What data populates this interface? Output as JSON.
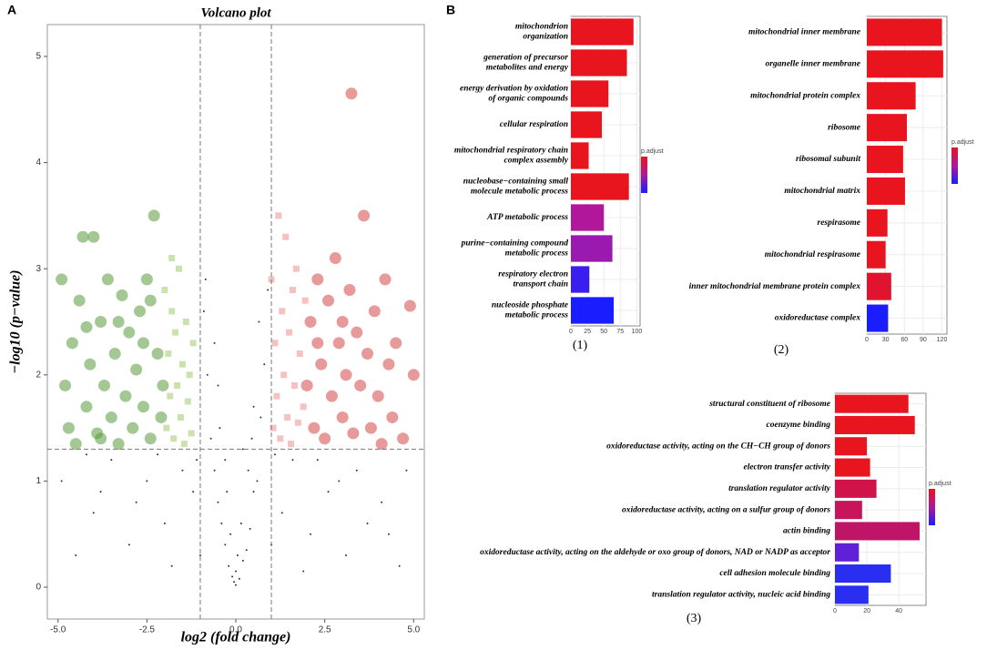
{
  "panel_b": "B",
  "chart_data": [
    {
      "type": "scatter",
      "panel": "A",
      "title": "Volcano plot",
      "x_label": "log2 (fold change)",
      "y_label": "−log10 (p−value)",
      "xlim": [
        -5.3,
        5.3
      ],
      "ylim": [
        -0.3,
        5.3
      ],
      "xticks": [
        {
          "value": -5,
          "label": "-5.0"
        },
        -2.5,
        {
          "value": 0,
          "label": "0.0"
        },
        2.5,
        {
          "value": 5,
          "label": "5.0"
        }
      ],
      "yticks": [
        0,
        1,
        2,
        3,
        4,
        5
      ],
      "vlines": [
        -1,
        1
      ],
      "hline": 1.3,
      "series": [
        {
          "color": "#000000",
          "marker": "point",
          "x": [
            0,
            -0.1,
            0.1,
            -0.2,
            0.2,
            -0.3,
            0.3,
            -0.4,
            0.4,
            -0.5,
            0.5,
            -0.6,
            0.6,
            -0.7,
            0.7,
            -0.8,
            0.8,
            -0.9,
            0.9,
            -0.5,
            0.5,
            -0.3,
            0.2,
            -1.2,
            1.3,
            -1.5,
            1.6,
            -2,
            2.1,
            -2.5,
            2.6,
            -3,
            3.1,
            -3.5,
            3.4,
            -4,
            4.1,
            -4.5,
            4.6,
            -4.9,
            4.8,
            -1,
            1,
            -1.8,
            1.9,
            -2.8,
            2.9,
            -3.8,
            3.7,
            -0.15,
            0.15,
            -0.25,
            0.35,
            -0.45,
            0.45,
            -0.6,
            0.65,
            -0.85,
            -1.1,
            1.1,
            -2.2,
            2.3,
            -4.2,
            4.3,
            0,
            -0.05,
            0.05
          ],
          "values": [
            0.02,
            0.1,
            0.08,
            0.2,
            0.25,
            0.4,
            0.35,
            0.6,
            0.55,
            0.8,
            0.9,
            1.1,
            1.0,
            1.4,
            1.6,
            2.0,
            2.1,
            2.6,
            2.8,
            1.9,
            1.7,
            1.2,
            1.3,
            0.9,
            0.7,
            1.1,
            1.2,
            0.6,
            0.5,
            1.0,
            0.9,
            0.4,
            0.3,
            1.2,
            1.1,
            0.7,
            0.8,
            0.3,
            0.2,
            1.0,
            1.1,
            0.3,
            0.4,
            0.2,
            0.15,
            0.8,
            1.0,
            0.9,
            0.6,
            0.5,
            0.6,
            0.9,
            1.1,
            1.5,
            1.4,
            2.3,
            2.5,
            2.9,
            1.2,
            1.25,
            1.25,
            1.2,
            1.25,
            0.5,
            0.15,
            0.05,
            0.3
          ]
        },
        {
          "color": "#5a9a3c",
          "marker": "circle",
          "x": [
            -4.9,
            -4.8,
            -4.7,
            -4.6,
            -4.5,
            -4.4,
            -4.3,
            -4.2,
            -4.1,
            -4,
            -3.9,
            -3.8,
            -3.7,
            -3.6,
            -3.5,
            -3.4,
            -3.3,
            -3.2,
            -3.1,
            -3,
            -2.9,
            -2.8,
            -2.7,
            -2.6,
            -2.5,
            -2.4,
            -2.3,
            -2.2,
            -2.1,
            -2.05,
            -2.6,
            -3.3,
            -4.2,
            -2.4,
            -3.8
          ],
          "values": [
            2.9,
            1.9,
            1.5,
            2.3,
            1.35,
            2.7,
            3.3,
            1.7,
            2.1,
            3.3,
            1.45,
            2.5,
            1.9,
            2.9,
            1.6,
            2.2,
            1.35,
            2.75,
            1.8,
            2.4,
            1.5,
            2.05,
            2.6,
            1.7,
            2.9,
            1.4,
            3.5,
            2.2,
            1.6,
            1.9,
            2.3,
            2.5,
            2.45,
            2.7,
            1.4
          ]
        },
        {
          "color": "#b5d68c",
          "marker": "square",
          "x": [
            -2,
            -1.95,
            -1.9,
            -1.85,
            -1.8,
            -1.75,
            -1.7,
            -1.65,
            -1.6,
            -1.55,
            -1.5,
            -1.45,
            -1.4,
            -1.35,
            -1.3,
            -1.25,
            -1.2,
            -1.8
          ],
          "values": [
            2.8,
            1.5,
            2.2,
            1.8,
            2.6,
            1.4,
            2.4,
            1.9,
            3.0,
            1.6,
            2.1,
            1.35,
            2.5,
            1.75,
            2.0,
            1.45,
            2.3,
            3.1
          ]
        },
        {
          "color": "#f2a6a6",
          "marker": "square",
          "x": [
            1.0,
            1.05,
            1.1,
            1.15,
            1.2,
            1.25,
            1.3,
            1.35,
            1.4,
            1.45,
            1.5,
            1.55,
            1.6,
            1.65,
            1.7,
            1.75,
            1.8,
            1.9,
            1.95
          ],
          "values": [
            2.9,
            1.5,
            2.3,
            1.8,
            3.5,
            1.4,
            2.6,
            2.0,
            3.3,
            1.6,
            2.4,
            1.35,
            2.8,
            1.9,
            3.0,
            1.55,
            2.2,
            1.7,
            2.7
          ]
        },
        {
          "color": "#d64545",
          "marker": "circle",
          "x": [
            2.0,
            2.1,
            2.2,
            2.3,
            2.4,
            2.5,
            2.6,
            2.7,
            2.8,
            2.9,
            3.0,
            3.1,
            3.2,
            3.25,
            3.3,
            3.4,
            3.5,
            3.6,
            3.7,
            3.8,
            3.9,
            4.0,
            4.1,
            4.2,
            4.3,
            4.4,
            4.5,
            4.7,
            4.9,
            5.0,
            2.3,
            3.0
          ],
          "values": [
            1.9,
            2.5,
            1.5,
            2.9,
            2.1,
            1.4,
            2.7,
            1.8,
            3.1,
            2.3,
            1.6,
            2.0,
            2.8,
            4.65,
            1.45,
            2.4,
            1.9,
            3.5,
            2.2,
            1.5,
            2.6,
            1.8,
            1.35,
            2.9,
            2.1,
            1.6,
            2.3,
            1.4,
            2.65,
            2.0,
            2.3,
            2.5
          ]
        }
      ]
    },
    {
      "type": "bar",
      "panel": "(1)",
      "legend_title": "p.adjust",
      "legend_colors": [
        "#e8141e",
        "#b0179a",
        "#1a1eff"
      ],
      "categories": [
        "mitochondrion\norganization",
        "generation of precursor\nmetabolites and energy",
        "energy derivation by oxidation\nof organic compounds",
        "cellular respiration",
        "mitochondrial respiratory chain\ncomplex assembly",
        "nucleobase−containing small\nmolecule metabolic process",
        "ATP metabolic process",
        "purine−containing compound\nmetabolic process",
        "respiratory electron\ntransport chain",
        "nucleoside phosphate\nmetabolic process"
      ],
      "values": [
        95,
        85,
        57,
        47,
        27,
        88,
        50,
        63,
        28,
        65
      ],
      "colors": [
        "#e8141e",
        "#e8141e",
        "#e8141e",
        "#e8141e",
        "#e8141e",
        "#e8141e",
        "#b0179a",
        "#9a1ab0",
        "#3a1ef0",
        "#1a1eff"
      ],
      "xlim": [
        0,
        105
      ],
      "xticks": [
        0,
        25,
        50,
        75,
        100
      ]
    },
    {
      "type": "bar",
      "panel": "(2)",
      "legend_title": "p.adjust",
      "legend_colors": [
        "#e8141e",
        "#b0179a",
        "#1a1eff"
      ],
      "categories": [
        "mitochondrial inner membrane",
        "organelle inner membrane",
        "mitochondrial protein complex",
        "ribosome",
        "ribosomal subunit",
        "mitochondrial matrix",
        "respirasome",
        "mitochondrial respirasome",
        "inner mitochondrial membrane protein complex",
        "oxidoreductase complex"
      ],
      "values": [
        120,
        122,
        78,
        64,
        58,
        61,
        33,
        30,
        39,
        34
      ],
      "colors": [
        "#e8141e",
        "#e8141e",
        "#e8141e",
        "#e8141e",
        "#e8141e",
        "#e8141e",
        "#e8141e",
        "#e8141e",
        "#e0142e",
        "#1a1eff"
      ],
      "xlim": [
        0,
        128
      ],
      "xticks": [
        0,
        30,
        60,
        90,
        120
      ]
    },
    {
      "type": "bar",
      "panel": "(3)",
      "legend_title": "p.adjust",
      "legend_colors": [
        "#e8141e",
        "#b0179a",
        "#1a1eff"
      ],
      "categories": [
        "structural constituent of ribosome",
        "coenzyme binding",
        "oxidoreductase activity, acting on the CH−CH group of donors",
        "electron transfer activity",
        "translation regulator activity",
        "oxidoreductase activity, acting on a sulfur group of donors",
        "actin binding",
        "oxidoreductase activity, acting on the aldehyde or oxo group of donors, NAD or NADP as acceptor",
        "cell adhesion molecule binding",
        "translation regulator activity, nucleic acid binding"
      ],
      "values": [
        46,
        50,
        20,
        22,
        26,
        17,
        53,
        15,
        35,
        21
      ],
      "colors": [
        "#e8141e",
        "#e8141e",
        "#e8141e",
        "#e8141e",
        "#d0144a",
        "#c8145a",
        "#c01466",
        "#6020d8",
        "#2a2ef0",
        "#2a2ef0"
      ],
      "xlim": [
        0,
        57
      ],
      "xticks": [
        0,
        20,
        40
      ]
    }
  ]
}
